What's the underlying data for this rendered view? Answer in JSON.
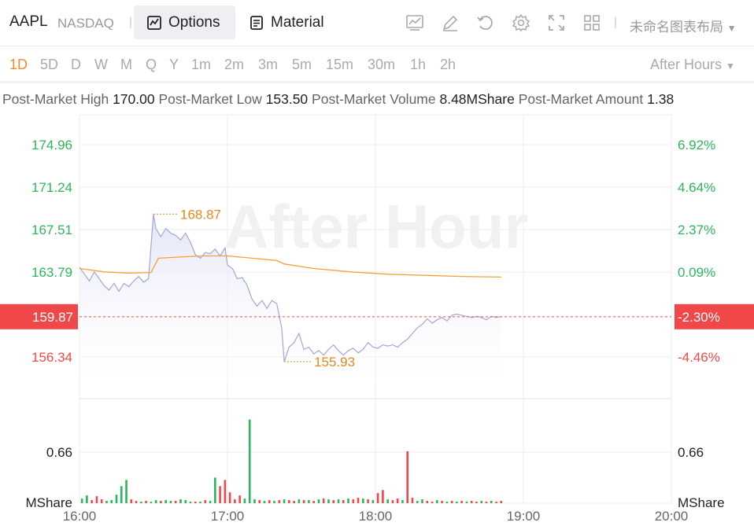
{
  "header": {
    "ticker": "AAPL",
    "exchange": "NASDAQ",
    "tab_options": "Options",
    "tab_material": "Material",
    "layout_name": "未命名图表布局",
    "icons": [
      "chart-icon",
      "draw-icon",
      "undo-icon",
      "settings-icon",
      "fullscreen-icon",
      "grid-icon"
    ]
  },
  "periods": {
    "items": [
      "1D",
      "5D",
      "D",
      "W",
      "M",
      "Q",
      "Y",
      "1m",
      "2m",
      "3m",
      "5m",
      "15m",
      "30m",
      "1h",
      "2h"
    ],
    "active": "1D",
    "session": "After Hours"
  },
  "stats": {
    "high_label": "Post-Market High",
    "high_value": "170.00",
    "low_label": "Post-Market Low",
    "low_value": "153.50",
    "volume_label": "Post-Market Volume",
    "volume_value": "8.48MShare",
    "amount_label": "Post-Market Amount",
    "amount_value": "1.38"
  },
  "colors": {
    "up": "#2db55d",
    "down": "#f04848",
    "price_line": "#a3a6d8",
    "avg_line": "#f4a234",
    "annotation": "#e8891a"
  },
  "chart_data": {
    "type": "line",
    "watermark": "After Hour",
    "x_ticks": [
      "16:00",
      "17:00",
      "18:00",
      "19:00",
      "20:00"
    ],
    "price_axis_left": [
      {
        "label": "174.96",
        "value": 174.96
      },
      {
        "label": "171.24",
        "value": 171.24
      },
      {
        "label": "167.51",
        "value": 167.51
      },
      {
        "label": "163.79",
        "value": 163.79
      },
      {
        "label": "156.34",
        "value": 156.34
      }
    ],
    "pct_axis_right": [
      {
        "label": "6.92%",
        "value": 174.96
      },
      {
        "label": "4.64%",
        "value": 171.24
      },
      {
        "label": "2.37%",
        "value": 167.51
      },
      {
        "label": "0.09%",
        "value": 163.79
      },
      {
        "label": "-4.46%",
        "value": 156.34
      }
    ],
    "current_price": {
      "label": "159.87",
      "pct": "-2.30%",
      "value": 159.87
    },
    "max_annotation": {
      "label": "168.87",
      "time": "16:30",
      "value": 168.87
    },
    "min_annotation": {
      "label": "155.93",
      "time": "17:23",
      "value": 155.93
    },
    "volume_axis": {
      "ticks": [
        {
          "label": "0.66",
          "value": 0.66
        }
      ],
      "unit": "MShare",
      "max": 1.35
    },
    "series": [
      {
        "name": "price",
        "points": [
          [
            "16:00",
            164.2
          ],
          [
            "16:02",
            163.6
          ],
          [
            "16:04",
            163.0
          ],
          [
            "16:06",
            163.8
          ],
          [
            "16:08",
            163.2
          ],
          [
            "16:10",
            162.6
          ],
          [
            "16:12",
            162.2
          ],
          [
            "16:14",
            162.8
          ],
          [
            "16:16",
            162.1
          ],
          [
            "16:18",
            162.8
          ],
          [
            "16:20",
            162.5
          ],
          [
            "16:22",
            163.0
          ],
          [
            "16:24",
            163.4
          ],
          [
            "16:26",
            162.9
          ],
          [
            "16:28",
            163.2
          ],
          [
            "16:30",
            168.87
          ],
          [
            "16:31",
            167.6
          ],
          [
            "16:33",
            166.9
          ],
          [
            "16:35",
            167.6
          ],
          [
            "16:37",
            167.2
          ],
          [
            "16:39",
            167.0
          ],
          [
            "16:41",
            166.6
          ],
          [
            "16:43",
            167.2
          ],
          [
            "16:45",
            166.4
          ],
          [
            "16:47",
            165.3
          ],
          [
            "16:49",
            165.0
          ],
          [
            "16:51",
            165.5
          ],
          [
            "16:53",
            165.4
          ],
          [
            "16:55",
            165.8
          ],
          [
            "16:57",
            165.2
          ],
          [
            "16:59",
            165.9
          ],
          [
            "17:00",
            164.4
          ],
          [
            "17:02",
            164.1
          ],
          [
            "17:04",
            163.2
          ],
          [
            "17:06",
            163.3
          ],
          [
            "17:08",
            162.6
          ],
          [
            "17:10",
            161.4
          ],
          [
            "17:12",
            160.8
          ],
          [
            "17:14",
            161.3
          ],
          [
            "17:16",
            160.6
          ],
          [
            "17:18",
            161.3
          ],
          [
            "17:20",
            161.0
          ],
          [
            "17:22",
            158.9
          ],
          [
            "17:23",
            155.93
          ],
          [
            "17:25",
            157.2
          ],
          [
            "17:27",
            157.6
          ],
          [
            "17:29",
            158.4
          ],
          [
            "17:31",
            157.0
          ],
          [
            "17:33",
            157.2
          ],
          [
            "17:35",
            156.6
          ],
          [
            "17:37",
            156.9
          ],
          [
            "17:39",
            156.5
          ],
          [
            "17:41",
            157.0
          ],
          [
            "17:43",
            157.4
          ],
          [
            "17:45",
            156.9
          ],
          [
            "17:47",
            156.5
          ],
          [
            "17:49",
            156.9
          ],
          [
            "17:51",
            157.1
          ],
          [
            "17:53",
            156.7
          ],
          [
            "17:55",
            157.0
          ],
          [
            "17:57",
            157.6
          ],
          [
            "17:59",
            157.2
          ],
          [
            "18:01",
            157.1
          ],
          [
            "18:03",
            157.4
          ],
          [
            "18:05",
            157.3
          ],
          [
            "18:07",
            157.4
          ],
          [
            "18:09",
            157.2
          ],
          [
            "18:11",
            157.6
          ],
          [
            "18:13",
            157.9
          ],
          [
            "18:15",
            158.4
          ],
          [
            "18:17",
            158.9
          ],
          [
            "18:19",
            159.2
          ],
          [
            "18:21",
            159.7
          ],
          [
            "18:23",
            159.3
          ],
          [
            "18:25",
            159.6
          ],
          [
            "18:27",
            159.8
          ],
          [
            "18:29",
            159.5
          ],
          [
            "18:31",
            160.0
          ],
          [
            "18:33",
            160.1
          ],
          [
            "18:35",
            160.0
          ],
          [
            "18:37",
            159.9
          ],
          [
            "18:39",
            159.8
          ],
          [
            "18:41",
            159.9
          ],
          [
            "18:43",
            159.8
          ],
          [
            "18:45",
            159.6
          ],
          [
            "18:47",
            159.9
          ],
          [
            "18:49",
            159.8
          ],
          [
            "18:51",
            159.87
          ]
        ]
      },
      {
        "name": "average",
        "points": [
          [
            "16:00",
            164.1
          ],
          [
            "16:10",
            163.8
          ],
          [
            "16:20",
            163.7
          ],
          [
            "16:29",
            163.75
          ],
          [
            "16:32",
            165.0
          ],
          [
            "16:40",
            165.1
          ],
          [
            "16:50",
            165.2
          ],
          [
            "17:00",
            165.2
          ],
          [
            "17:10",
            165.0
          ],
          [
            "17:20",
            164.8
          ],
          [
            "17:23",
            164.5
          ],
          [
            "17:35",
            164.1
          ],
          [
            "17:50",
            163.8
          ],
          [
            "18:05",
            163.6
          ],
          [
            "18:20",
            163.5
          ],
          [
            "18:35",
            163.4
          ],
          [
            "18:51",
            163.35
          ]
        ]
      }
    ],
    "volume": [
      [
        "16:01",
        0.06,
        "up"
      ],
      [
        "16:03",
        0.1,
        "up"
      ],
      [
        "16:05",
        0.04,
        "down"
      ],
      [
        "16:07",
        0.09,
        "down"
      ],
      [
        "16:09",
        0.05,
        "down"
      ],
      [
        "16:11",
        0.03,
        "up"
      ],
      [
        "16:13",
        0.04,
        "up"
      ],
      [
        "16:15",
        0.11,
        "up"
      ],
      [
        "16:17",
        0.22,
        "up"
      ],
      [
        "16:19",
        0.3,
        "up"
      ],
      [
        "16:21",
        0.05,
        "down"
      ],
      [
        "16:23",
        0.03,
        "down"
      ],
      [
        "16:25",
        0.02,
        "up"
      ],
      [
        "16:27",
        0.03,
        "down"
      ],
      [
        "16:29",
        0.02,
        "up"
      ],
      [
        "16:31",
        0.04,
        "up"
      ],
      [
        "16:33",
        0.03,
        "down"
      ],
      [
        "16:35",
        0.04,
        "up"
      ],
      [
        "16:37",
        0.03,
        "up"
      ],
      [
        "16:39",
        0.03,
        "down"
      ],
      [
        "16:41",
        0.05,
        "up"
      ],
      [
        "16:43",
        0.04,
        "up"
      ],
      [
        "16:45",
        0.02,
        "up"
      ],
      [
        "16:47",
        0.02,
        "down"
      ],
      [
        "16:49",
        0.02,
        "up"
      ],
      [
        "16:51",
        0.04,
        "down"
      ],
      [
        "16:53",
        0.03,
        "up"
      ],
      [
        "16:55",
        0.33,
        "up"
      ],
      [
        "16:57",
        0.22,
        "down"
      ],
      [
        "16:59",
        0.3,
        "down"
      ],
      [
        "17:01",
        0.14,
        "down"
      ],
      [
        "17:03",
        0.05,
        "down"
      ],
      [
        "17:05",
        0.1,
        "down"
      ],
      [
        "17:07",
        0.06,
        "up"
      ],
      [
        "17:09",
        1.08,
        "up"
      ],
      [
        "17:11",
        0.05,
        "up"
      ],
      [
        "17:13",
        0.04,
        "down"
      ],
      [
        "17:15",
        0.03,
        "up"
      ],
      [
        "17:17",
        0.04,
        "down"
      ],
      [
        "17:19",
        0.03,
        "up"
      ],
      [
        "17:21",
        0.04,
        "down"
      ],
      [
        "17:23",
        0.05,
        "up"
      ],
      [
        "17:25",
        0.04,
        "down"
      ],
      [
        "17:27",
        0.03,
        "down"
      ],
      [
        "17:29",
        0.05,
        "up"
      ],
      [
        "17:31",
        0.04,
        "down"
      ],
      [
        "17:33",
        0.04,
        "up"
      ],
      [
        "17:35",
        0.03,
        "down"
      ],
      [
        "17:37",
        0.05,
        "up"
      ],
      [
        "17:39",
        0.06,
        "down"
      ],
      [
        "17:41",
        0.05,
        "up"
      ],
      [
        "17:43",
        0.04,
        "down"
      ],
      [
        "17:45",
        0.05,
        "up"
      ],
      [
        "17:47",
        0.04,
        "down"
      ],
      [
        "17:49",
        0.06,
        "up"
      ],
      [
        "17:51",
        0.05,
        "down"
      ],
      [
        "17:53",
        0.07,
        "down"
      ],
      [
        "17:55",
        0.06,
        "up"
      ],
      [
        "17:57",
        0.05,
        "down"
      ],
      [
        "17:59",
        0.04,
        "up"
      ],
      [
        "18:01",
        0.13,
        "down"
      ],
      [
        "18:03",
        0.17,
        "down"
      ],
      [
        "18:05",
        0.05,
        "up"
      ],
      [
        "18:07",
        0.04,
        "down"
      ],
      [
        "18:09",
        0.06,
        "down"
      ],
      [
        "18:11",
        0.04,
        "up"
      ],
      [
        "18:13",
        0.67,
        "down"
      ],
      [
        "18:15",
        0.07,
        "down"
      ],
      [
        "18:17",
        0.03,
        "up"
      ],
      [
        "18:19",
        0.05,
        "up"
      ],
      [
        "18:21",
        0.03,
        "down"
      ],
      [
        "18:23",
        0.02,
        "down"
      ],
      [
        "18:25",
        0.04,
        "up"
      ],
      [
        "18:27",
        0.03,
        "down"
      ],
      [
        "18:29",
        0.02,
        "up"
      ],
      [
        "18:31",
        0.03,
        "down"
      ],
      [
        "18:33",
        0.02,
        "up"
      ],
      [
        "18:35",
        0.03,
        "down"
      ],
      [
        "18:37",
        0.02,
        "up"
      ],
      [
        "18:39",
        0.03,
        "down"
      ],
      [
        "18:41",
        0.02,
        "down"
      ],
      [
        "18:43",
        0.03,
        "up"
      ],
      [
        "18:45",
        0.02,
        "down"
      ],
      [
        "18:47",
        0.03,
        "up"
      ],
      [
        "18:49",
        0.02,
        "down"
      ],
      [
        "18:51",
        0.03,
        "down"
      ]
    ]
  }
}
